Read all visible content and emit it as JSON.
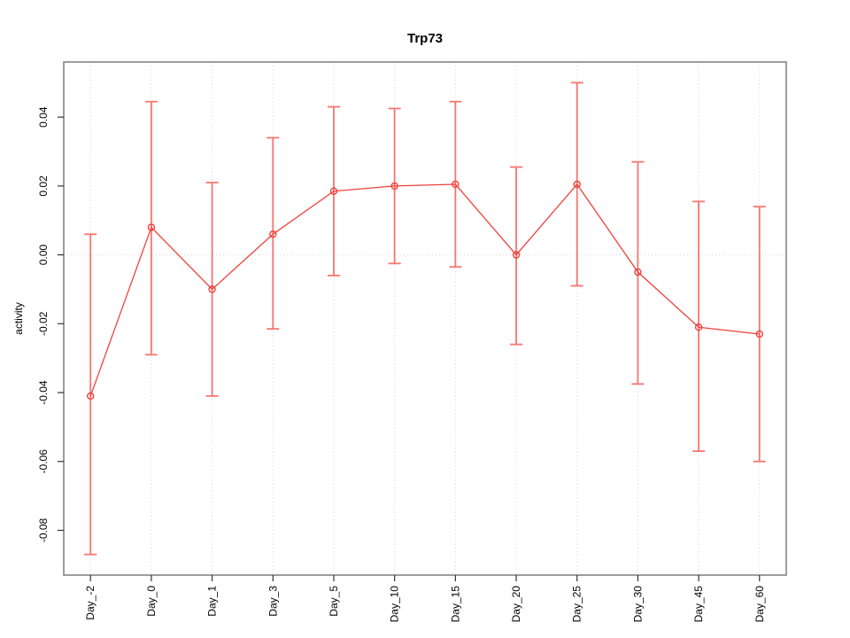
{
  "chart": {
    "title": "Trp73",
    "y_axis_label": "activity"
  },
  "chart_data": {
    "type": "line",
    "title": "Trp73",
    "xlabel": "",
    "ylabel": "activity",
    "categories": [
      "Day_-2",
      "Day_0",
      "Day_1",
      "Day_3",
      "Day_5",
      "Day_10",
      "Day_15",
      "Day_20",
      "Day_25",
      "Day_30",
      "Day_45",
      "Day_60"
    ],
    "series": [
      {
        "name": "Trp73 activity",
        "marker": "open-circle",
        "values": [
          -0.041,
          0.008,
          -0.01,
          0.006,
          0.0185,
          0.02,
          0.0205,
          0.0,
          0.0205,
          -0.005,
          -0.021,
          -0.023
        ],
        "error_upper": [
          0.006,
          0.0445,
          0.021,
          0.034,
          0.043,
          0.0425,
          0.0445,
          0.0255,
          0.05,
          0.027,
          0.0155,
          0.014
        ],
        "error_lower": [
          -0.087,
          -0.029,
          -0.041,
          -0.0215,
          -0.006,
          -0.0025,
          -0.0035,
          -0.026,
          -0.009,
          -0.0375,
          -0.057,
          -0.06
        ]
      }
    ],
    "yticks": [
      0.04,
      0.02,
      0,
      -0.02,
      -0.04,
      -0.06,
      -0.08
    ],
    "ytick_labels": [
      "0.04",
      "0.02",
      "0.00",
      "-0.02",
      "-0.04",
      "-0.06",
      "-0.08"
    ],
    "ylim": [
      -0.093,
      0.056
    ],
    "grid": {
      "vertical": "dotted line at every category",
      "horizontal": "dotted line at 0 only"
    },
    "legend": "none",
    "tick_label_rotation": "90deg (reads bottom-to-top)",
    "colors": {
      "point_line": "#f0413a",
      "error_bar": "#f8756f",
      "gridline": "#d7d7d7",
      "border": "#8c8c8c",
      "tick": "#333333",
      "text": "#000000",
      "background": "#ffffff"
    }
  }
}
